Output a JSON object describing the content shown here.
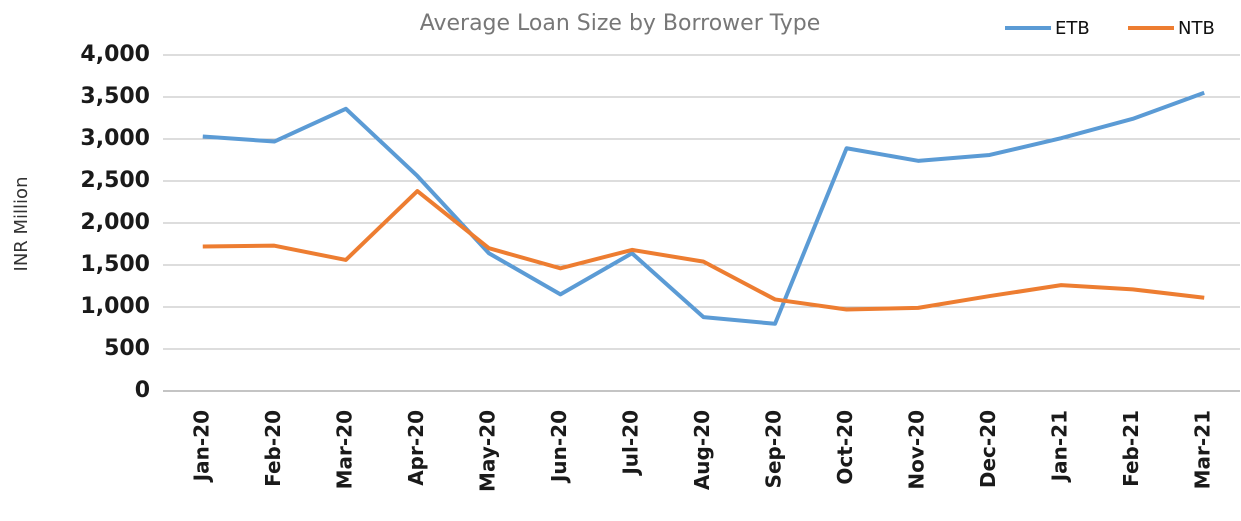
{
  "chart_data": {
    "type": "line",
    "title": "Average Loan Size by Borrower Type",
    "y_label": "INR Million",
    "categories": [
      "Jan-20",
      "Feb-20",
      "Mar-20",
      "Apr-20",
      "May-20",
      "Jun-20",
      "Jul-20",
      "Aug-20",
      "Sep-20",
      "Oct-20",
      "Nov-20",
      "Dec-20",
      "Jan-21",
      "Feb-21",
      "Mar-21"
    ],
    "series": [
      {
        "name": "ETB",
        "color": "#5b9bd5",
        "values": [
          3030,
          2970,
          3360,
          2560,
          1640,
          1150,
          1640,
          880,
          800,
          2890,
          2740,
          2810,
          3010,
          3240,
          3550
        ]
      },
      {
        "name": "NTB",
        "color": "#ed7d31",
        "values": [
          1720,
          1730,
          1560,
          2380,
          1700,
          1460,
          1680,
          1540,
          1090,
          970,
          990,
          1130,
          1260,
          1210,
          1110
        ]
      }
    ],
    "ylim": [
      0,
      4000
    ],
    "yticks": [
      0,
      500,
      {
        "value": 1000,
        "label": "1,000"
      },
      {
        "value": 1500,
        "label": "1,500"
      },
      {
        "value": 2000,
        "label": "2,000"
      },
      {
        "value": 2500,
        "label": "2,500"
      },
      {
        "value": 3000,
        "label": "3,000"
      },
      {
        "value": 3500,
        "label": "3,500"
      },
      {
        "value": 4000,
        "label": "4,000"
      }
    ],
    "grid": true,
    "legend": "top-right"
  }
}
